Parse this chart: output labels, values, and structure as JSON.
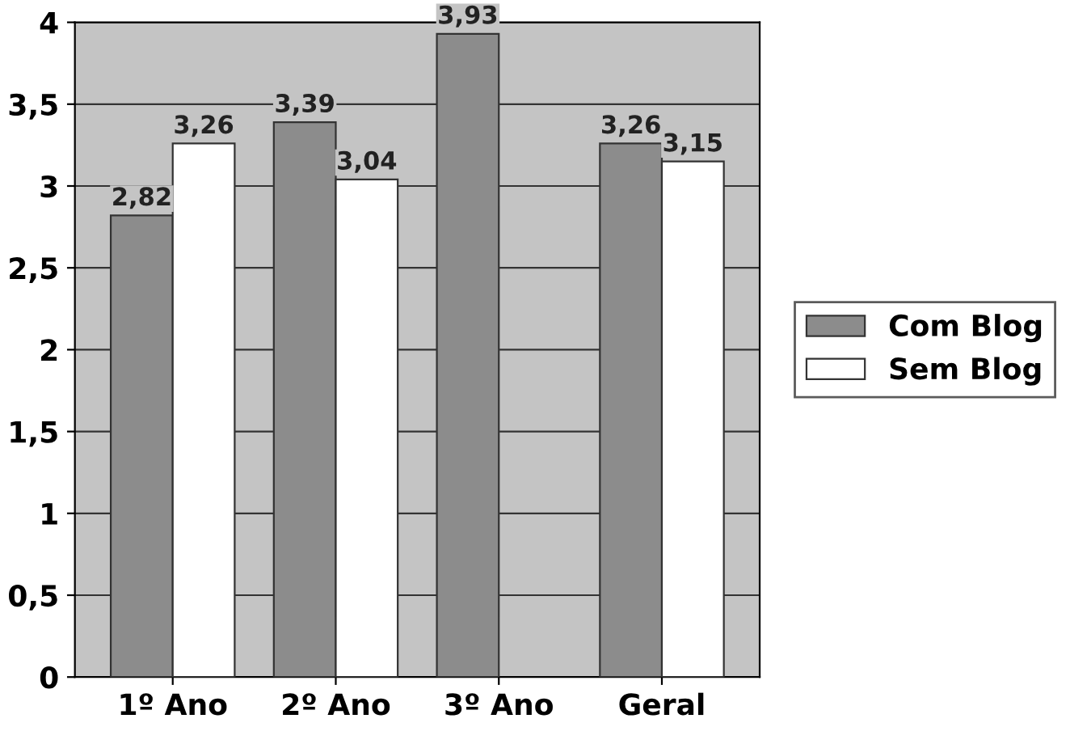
{
  "chart_data": {
    "type": "bar",
    "categories": [
      "1º Ano",
      "2º Ano",
      "3º Ano",
      "Geral"
    ],
    "series": [
      {
        "name": "Com Blog",
        "color": "#8c8c8c",
        "values": [
          2.82,
          3.39,
          3.93,
          3.26
        ],
        "value_labels": [
          "2,82",
          "3,39",
          "3,93",
          "3,26"
        ]
      },
      {
        "name": "Sem Blog",
        "color": "#ffffff",
        "values": [
          3.26,
          3.04,
          null,
          3.15
        ],
        "value_labels": [
          "3,26",
          "3,04",
          null,
          "3,15"
        ]
      }
    ],
    "ylim": [
      0,
      4
    ],
    "yticks": [
      0,
      {
        "value": 0.5,
        "label": "0,5"
      },
      1,
      {
        "value": 1.5,
        "label": "1,5"
      },
      2,
      {
        "value": 2.5,
        "label": "2,5"
      },
      3,
      {
        "value": 3.5,
        "label": "3,5"
      },
      4
    ],
    "grid": "y",
    "legend": "right"
  }
}
